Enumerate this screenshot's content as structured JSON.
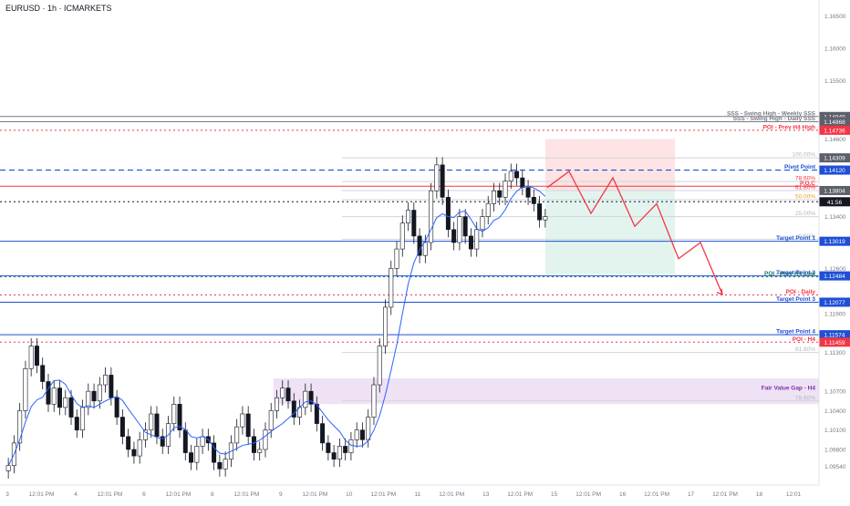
{
  "header": {
    "title": "EURUSD · 1h · ICMARKETS"
  },
  "chart_data": {
    "type": "candlestick",
    "symbol": "EURUSD",
    "timeframe": "1h",
    "exchange": "ICMARKETS",
    "ylim": [
      1.0925,
      1.1675
    ],
    "price_ticks": [
      "1.16500",
      "1.16000",
      "1.15500",
      "1.14600",
      "1.13400",
      "1.12600",
      "1.11900",
      "1.11300",
      "1.10700",
      "1.10400",
      "1.10100",
      "1.09800",
      "1.09540"
    ],
    "x_labels": [
      "3",
      "12:01 PM",
      "4",
      "12:01 PM",
      "6",
      "12:01 PM",
      "8",
      "12:01 PM",
      "9",
      "12:01 PM",
      "10",
      "12:01 PM",
      "11",
      "12:01 PM",
      "13",
      "12:01 PM",
      "15",
      "12:01 PM",
      "16",
      "12:01 PM",
      "17",
      "12:01 PM",
      "18",
      "12:01"
    ],
    "closes": [
      1.0955,
      1.099,
      1.104,
      1.1105,
      1.114,
      1.111,
      1.1085,
      1.105,
      1.1075,
      1.1045,
      1.106,
      1.103,
      1.101,
      1.1045,
      1.107,
      1.1055,
      1.108,
      1.1095,
      1.106,
      1.103,
      1.1,
      1.098,
      1.097,
      1.0995,
      1.101,
      1.1035,
      1.1,
      1.0985,
      1.102,
      1.105,
      1.101,
      1.0975,
      1.096,
      1.0985,
      1.1,
      1.099,
      1.096,
      1.095,
      1.0965,
      1.099,
      1.1015,
      1.1035,
      1.1,
      1.0975,
      1.098,
      1.101,
      1.104,
      1.106,
      1.1075,
      1.1055,
      1.103,
      1.1045,
      1.107,
      1.105,
      1.102,
      1.099,
      1.0975,
      1.0965,
      1.0985,
      1.0975,
      1.0995,
      1.101,
      1.0995,
      1.103,
      1.108,
      1.114,
      1.12,
      1.126,
      1.129,
      1.133,
      1.135,
      1.131,
      1.128,
      1.13,
      1.138,
      1.142,
      1.137,
      1.132,
      1.13,
      1.134,
      1.131,
      1.129,
      1.132,
      1.134,
      1.136,
      1.138,
      1.137,
      1.1395,
      1.141,
      1.14,
      1.1385,
      1.137,
      1.136,
      1.1335,
      1.134
    ],
    "ma_label": "",
    "levels": [
      {
        "label": "SSS - Swing High - Weekly SSS",
        "price": 1.14949,
        "color": "#787b86",
        "style": "solid",
        "tag": "1.14949"
      },
      {
        "label": "SSS - Swing High - Daily SSS",
        "price": 1.14868,
        "color": "#787b86",
        "style": "solid",
        "tag": "1.14868"
      },
      {
        "label": "POI - Prev H4 High",
        "price": 1.14736,
        "color": "#f23645",
        "style": "dotted",
        "tag": "1.14736"
      },
      {
        "label": "100.00%",
        "price": 1.14309,
        "color": "#b2b5be",
        "style": "fib",
        "tag": "1.14309"
      },
      {
        "label": "Pivot Point",
        "price": 1.1412,
        "color": "#1e4fd6",
        "style": "dashed",
        "tag": "1.14120"
      },
      {
        "label": "78.60%",
        "price": 1.13942,
        "color": "#f23645",
        "style": "fib",
        "tag": ""
      },
      {
        "label": "P.O.C",
        "price": 1.1387,
        "color": "#f23645",
        "style": "solid",
        "tag": ""
      },
      {
        "label": "61.80%",
        "price": 1.13804,
        "color": "#f23645",
        "style": "fib",
        "tag": "1.13804"
      },
      {
        "label": "50.00%",
        "price": 1.1366,
        "color": "#f0a020",
        "style": "fib",
        "tag": ""
      },
      {
        "label": "",
        "price": 1.1363,
        "color": "#131722",
        "style": "dotted",
        "tag": "41:56"
      },
      {
        "label": "25.00%",
        "price": 1.134,
        "color": "#b2b5be",
        "style": "fib",
        "tag": ""
      },
      {
        "label": "0.00%",
        "price": 1.1305,
        "color": "#b2b5be",
        "style": "fib",
        "tag": ""
      },
      {
        "label": "Target Point 1",
        "price": 1.13019,
        "color": "#1e4fd6",
        "style": "solid",
        "tag": "1.13019"
      },
      {
        "label": "Target Point 2",
        "price": 1.12484,
        "color": "#1e4fd6",
        "style": "solid",
        "tag": "1.12484"
      },
      {
        "label": "POI - Prev H4 Low",
        "price": 1.1247,
        "color": "#1e7a5a",
        "style": "dotted",
        "tag": ""
      },
      {
        "label": "POI - Daily",
        "price": 1.1219,
        "color": "#f23645",
        "style": "dotted",
        "tag": ""
      },
      {
        "label": "Target Point 3",
        "price": 1.12077,
        "color": "#1e4fd6",
        "style": "solid",
        "tag": "1.12077"
      },
      {
        "label": "Target Point 4",
        "price": 1.11574,
        "color": "#1e4fd6",
        "style": "solid",
        "tag": "1.11574"
      },
      {
        "label": "POI - H4",
        "price": 1.11459,
        "color": "#f23645",
        "style": "dotted",
        "tag": "1.11459"
      },
      {
        "label": "61.80%",
        "price": 1.113,
        "color": "#b2b5be",
        "style": "fib",
        "tag": ""
      },
      {
        "label": "Fair Value Gap - H4",
        "price": 1.107,
        "color": "#7b2fb0",
        "style": "text",
        "tag": ""
      },
      {
        "label": "78.60%",
        "price": 1.1055,
        "color": "#b2b5be",
        "style": "fib",
        "tag": ""
      }
    ],
    "projection": [
      [
        1.1385,
        0
      ],
      [
        1.141,
        1
      ],
      [
        1.1345,
        2
      ],
      [
        1.14,
        3
      ],
      [
        1.1325,
        4
      ],
      [
        1.136,
        5
      ],
      [
        1.1275,
        6
      ],
      [
        1.13,
        7
      ],
      [
        1.122,
        8
      ]
    ],
    "fvg_zone": {
      "top": 1.109,
      "bottom": 1.105
    },
    "short_zone": {
      "top": 1.146,
      "bottom": 1.138
    },
    "long_zone": {
      "top": 1.138,
      "bottom": 1.125
    },
    "colors": {
      "up": "#131722",
      "down": "#131722",
      "ma": "#2962ff",
      "bg": "#ffffff",
      "axis": "#787b86",
      "red": "#f23645",
      "blue": "#1e4fd6",
      "fvg": "#e8d6f0",
      "pink": "#fde3e3",
      "teal": "#e3f4ef"
    }
  }
}
